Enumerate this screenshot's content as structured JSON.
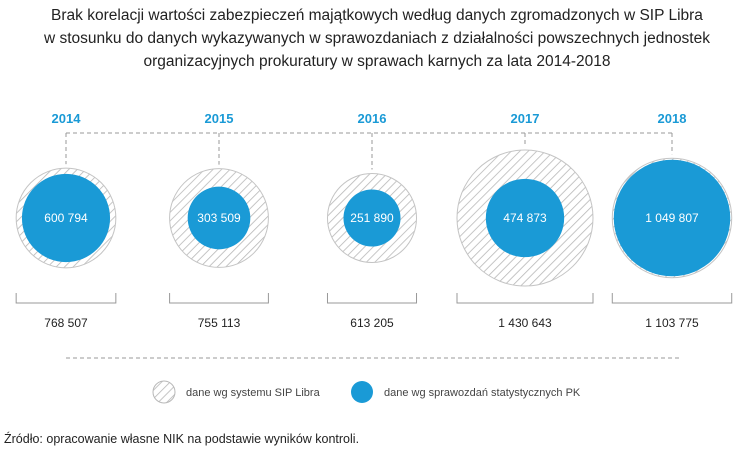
{
  "title_lines": [
    "Brak korelacji wartości zabezpieczeń majątkowych według danych zgromadzonych w SIP Libra",
    "w stosunku do danych wykazywanych w sprawozdaniach z działalności  powszechnych jednostek",
    "organizacyjnych prokuratury w sprawach karnych za lata 2014-2018"
  ],
  "source": "Źródło: opracowanie własne NIK na podstawie wyników kontroli.",
  "colors": {
    "accent": "#1a9ad6",
    "hatch": "#b8b8b8",
    "text": "#222222",
    "line": "#999999"
  },
  "chart_data": {
    "type": "bubble",
    "categories": [
      "2014",
      "2015",
      "2016",
      "2017",
      "2018"
    ],
    "series": [
      {
        "name": "dane wg systemu SIP Libra",
        "style": "hatched",
        "values": [
          768507,
          755113,
          613205,
          1430643,
          1103775
        ],
        "labels": [
          "768 507",
          "755 113",
          "613 205",
          "1 430 643",
          "1 103 775"
        ]
      },
      {
        "name": "dane wg sprawozdań statystycznych PK",
        "style": "filled",
        "color": "#1a9ad6",
        "values": [
          600794,
          303509,
          251890,
          474873,
          1049807
        ],
        "labels": [
          "600 794",
          "303 509",
          "251 890",
          "474 873",
          "1 049 807"
        ]
      }
    ],
    "legend": "bottom-center"
  }
}
